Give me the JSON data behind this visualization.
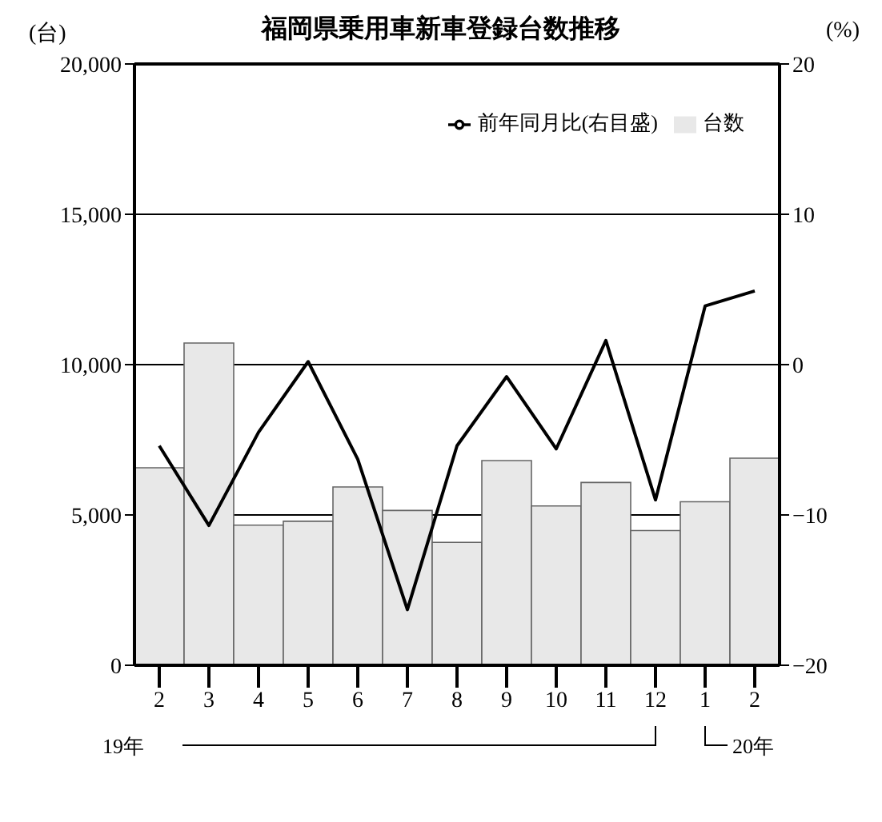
{
  "chart_data": {
    "type": "bar",
    "title": "福岡県乗用車新車登録台数推移",
    "categories": [
      "2",
      "3",
      "4",
      "5",
      "6",
      "7",
      "8",
      "9",
      "10",
      "11",
      "12",
      "1",
      "2"
    ],
    "series": [
      {
        "name": "台数",
        "color": "#e8e8e8",
        "values": [
          6570,
          10720,
          4660,
          4790,
          5930,
          5150,
          4090,
          6810,
          5300,
          6080,
          4480,
          5440,
          6890
        ]
      },
      {
        "name": "前年同月比(右目盛)",
        "type": "line",
        "axis": "y2",
        "color": "#000000",
        "values": [
          -5.4,
          -10.7,
          -4.5,
          0.2,
          -6.3,
          -16.3,
          -5.4,
          -0.8,
          -5.6,
          1.6,
          -9.0,
          3.9,
          4.9
        ]
      }
    ],
    "ylim": [
      0,
      20000
    ],
    "yticks": [
      {
        "value": 0,
        "label": "0"
      },
      {
        "value": 5000,
        "label": "5,000"
      },
      {
        "value": 10000,
        "label": "10,000"
      },
      {
        "value": 15000,
        "label": "15,000"
      },
      {
        "value": 20000,
        "label": "20,000"
      }
    ],
    "y2lim": [
      -20,
      20
    ],
    "y2ticks": [
      {
        "value": -20,
        "label": "−20"
      },
      {
        "value": -10,
        "label": "−10"
      },
      0,
      10,
      20
    ],
    "ylabel": "(台)",
    "y2label": "(%)",
    "annotations": [
      "19年",
      "20年"
    ],
    "grid": "y",
    "legend": "top right",
    "marker": "none",
    "line_style": "solid"
  }
}
